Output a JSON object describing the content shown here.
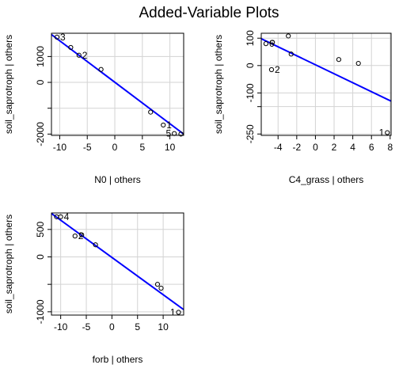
{
  "title": "Added-Variable Plots",
  "chart_data": [
    {
      "type": "scatter",
      "xlabel": "N0 | others",
      "ylabel": "soil_saprotroph  | others",
      "xlim": [
        -11.5,
        12.5
      ],
      "ylim": [
        -2050,
        1900
      ],
      "xticks": [
        -10,
        -5,
        0,
        5,
        10
      ],
      "yticks": [
        -2000,
        -1000,
        0,
        1000
      ],
      "ytick_labels": [
        "-2000",
        "",
        "0",
        "1000"
      ],
      "grid": true,
      "line": {
        "x": [
          -11.5,
          12.5
        ],
        "y": [
          1850,
          -2000
        ],
        "color": "#0000ff"
      },
      "points": [
        {
          "x": -10.5,
          "y": 1750,
          "label": "3"
        },
        {
          "x": -8,
          "y": 1350,
          "label": ""
        },
        {
          "x": -6.5,
          "y": 1050,
          "label": "2"
        },
        {
          "x": -2.5,
          "y": 500,
          "label": ""
        },
        {
          "x": 6.5,
          "y": -1150,
          "label": ""
        },
        {
          "x": 8.8,
          "y": -1650,
          "label": "1"
        },
        {
          "x": 10.8,
          "y": -1980,
          "label": "5"
        },
        {
          "x": 12,
          "y": -2000,
          "label": ""
        }
      ]
    },
    {
      "type": "scatter",
      "xlabel": "C4_grass | others",
      "ylabel": "soil_saprotroph  | others",
      "xlim": [
        -5.8,
        8.1
      ],
      "ylim": [
        -255,
        118
      ],
      "xticks": [
        -4,
        -2,
        0,
        2,
        4,
        6,
        8
      ],
      "yticks": [
        -250,
        -150,
        -100,
        0,
        100
      ],
      "ytick_labels": [
        "-250",
        "",
        "-100",
        "0",
        "100"
      ],
      "grid": true,
      "line": {
        "x": [
          -5.8,
          8.1
        ],
        "y": [
          98,
          -130
        ],
        "color": "#0000ff"
      },
      "points": [
        {
          "x": -5.3,
          "y": 80,
          "label": "6"
        },
        {
          "x": -4.6,
          "y": 85,
          "label": ""
        },
        {
          "x": -4.7,
          "y": -15,
          "label": "2"
        },
        {
          "x": -2.9,
          "y": 108,
          "label": ""
        },
        {
          "x": -2.6,
          "y": 42,
          "label": ""
        },
        {
          "x": 2.5,
          "y": 22,
          "label": ""
        },
        {
          "x": 4.6,
          "y": 8,
          "label": ""
        },
        {
          "x": 7.7,
          "y": -245,
          "label": "1"
        }
      ]
    },
    {
      "type": "scatter",
      "xlabel": "forb | others",
      "ylabel": "soil_saprotroph  | others",
      "xlim": [
        -11.8,
        14
      ],
      "ylim": [
        -1060,
        800
      ],
      "xticks": [
        -10,
        -5,
        0,
        5,
        10
      ],
      "yticks": [
        -1000,
        -500,
        0,
        500
      ],
      "ytick_labels": [
        "-1000",
        "",
        "0",
        "500"
      ],
      "grid": true,
      "line": {
        "x": [
          -11.8,
          14
        ],
        "y": [
          790,
          -960
        ],
        "color": "#0000ff"
      },
      "points": [
        {
          "x": -10.8,
          "y": 730,
          "label": ""
        },
        {
          "x": -10,
          "y": 730,
          "label": "4"
        },
        {
          "x": -7.2,
          "y": 380,
          "label": "2"
        },
        {
          "x": -5.9,
          "y": 400,
          "label": ""
        },
        {
          "x": -3.2,
          "y": 220,
          "label": ""
        },
        {
          "x": 8.9,
          "y": -500,
          "label": ""
        },
        {
          "x": 9.6,
          "y": -570,
          "label": ""
        },
        {
          "x": 13,
          "y": -1010,
          "label": "1"
        }
      ]
    }
  ]
}
